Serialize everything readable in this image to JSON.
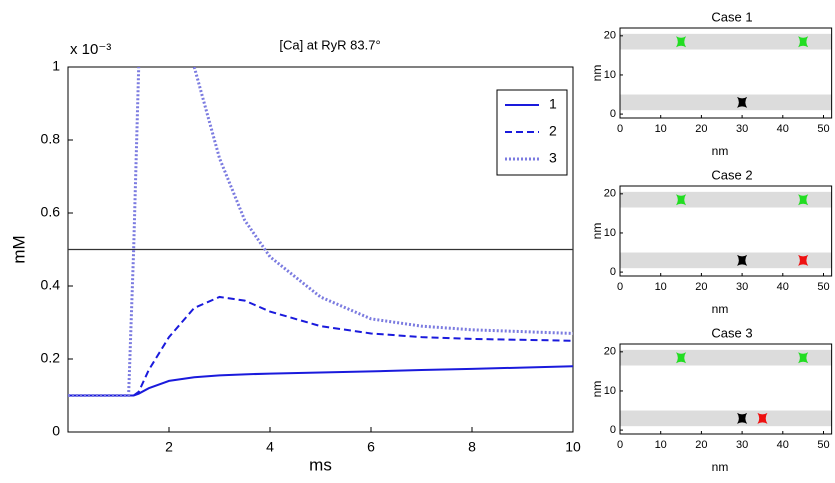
{
  "chart_data": [
    {
      "type": "line",
      "title": "[Ca] at RyR 83.7°",
      "y_multiplier": "x 10⁻³",
      "x_label": "ms",
      "y_label": "mM",
      "x": [
        0,
        1,
        1.2,
        1.3,
        1.4,
        1.6,
        2,
        2.5,
        3,
        3.5,
        4,
        5,
        6,
        7,
        8,
        10
      ],
      "series": [
        {
          "name": "1",
          "color": "#1a1adc",
          "dash": "solid",
          "values": [
            0.1,
            0.1,
            0.1,
            0.1,
            0.105,
            0.12,
            0.14,
            0.15,
            0.155,
            0.158,
            0.16,
            0.163,
            0.166,
            0.17,
            0.173,
            0.18
          ]
        },
        {
          "name": "2",
          "color": "#1a1adc",
          "dash": "dashed",
          "values": [
            0.1,
            0.1,
            0.1,
            0.1,
            0.11,
            0.17,
            0.26,
            0.34,
            0.37,
            0.36,
            0.33,
            0.29,
            0.27,
            0.26,
            0.255,
            0.25
          ]
        },
        {
          "name": "3",
          "color": "#7b7be0",
          "dash": "dotted",
          "values": [
            0.1,
            0.1,
            0.1,
            0.5,
            1.0,
            null,
            null,
            1.0,
            0.75,
            0.58,
            0.48,
            0.37,
            0.31,
            0.29,
            0.28,
            0.27
          ]
        }
      ],
      "hline": 0.5,
      "xlim": [
        0,
        10
      ],
      "ylim": [
        0,
        1
      ],
      "xticks": [
        2,
        4,
        6,
        8,
        10
      ],
      "yticks": [
        0,
        0.2,
        0.4,
        0.6,
        0.8,
        1
      ],
      "legend": "upper right"
    },
    {
      "type": "scatter",
      "title": "Case 1",
      "x_label": "nm",
      "y_label": "nm",
      "xlim": [
        0,
        52
      ],
      "ylim": [
        -1,
        22
      ],
      "xticks": [
        0,
        10,
        20,
        30,
        40,
        50
      ],
      "yticks": [
        0,
        10,
        20
      ],
      "bands": [
        [
          16.5,
          20.5
        ],
        [
          1,
          5
        ]
      ],
      "points": {
        "x": [
          15,
          45,
          30
        ],
        "y": [
          18.5,
          18.5,
          3
        ],
        "colors": [
          "#22dd22",
          "#22dd22",
          "#000000"
        ]
      }
    },
    {
      "type": "scatter",
      "title": "Case 2",
      "x_label": "nm",
      "y_label": "nm",
      "xlim": [
        0,
        52
      ],
      "ylim": [
        -1,
        22
      ],
      "xticks": [
        0,
        10,
        20,
        30,
        40,
        50
      ],
      "yticks": [
        0,
        10,
        20
      ],
      "bands": [
        [
          16.5,
          20.5
        ],
        [
          1,
          5
        ]
      ],
      "points": {
        "x": [
          15,
          45,
          30,
          45
        ],
        "y": [
          18.5,
          18.5,
          3,
          3
        ],
        "colors": [
          "#22dd22",
          "#22dd22",
          "#000000",
          "#ee1111"
        ]
      }
    },
    {
      "type": "scatter",
      "title": "Case 3",
      "x_label": "nm",
      "y_label": "nm",
      "xlim": [
        0,
        52
      ],
      "ylim": [
        -1,
        22
      ],
      "xticks": [
        0,
        10,
        20,
        30,
        40,
        50
      ],
      "yticks": [
        0,
        10,
        20
      ],
      "bands": [
        [
          16.5,
          20.5
        ],
        [
          1,
          5
        ]
      ],
      "points": {
        "x": [
          15,
          45,
          30,
          35
        ],
        "y": [
          18.5,
          18.5,
          3,
          3
        ],
        "colors": [
          "#22dd22",
          "#22dd22",
          "#000000",
          "#ee1111"
        ]
      }
    }
  ]
}
